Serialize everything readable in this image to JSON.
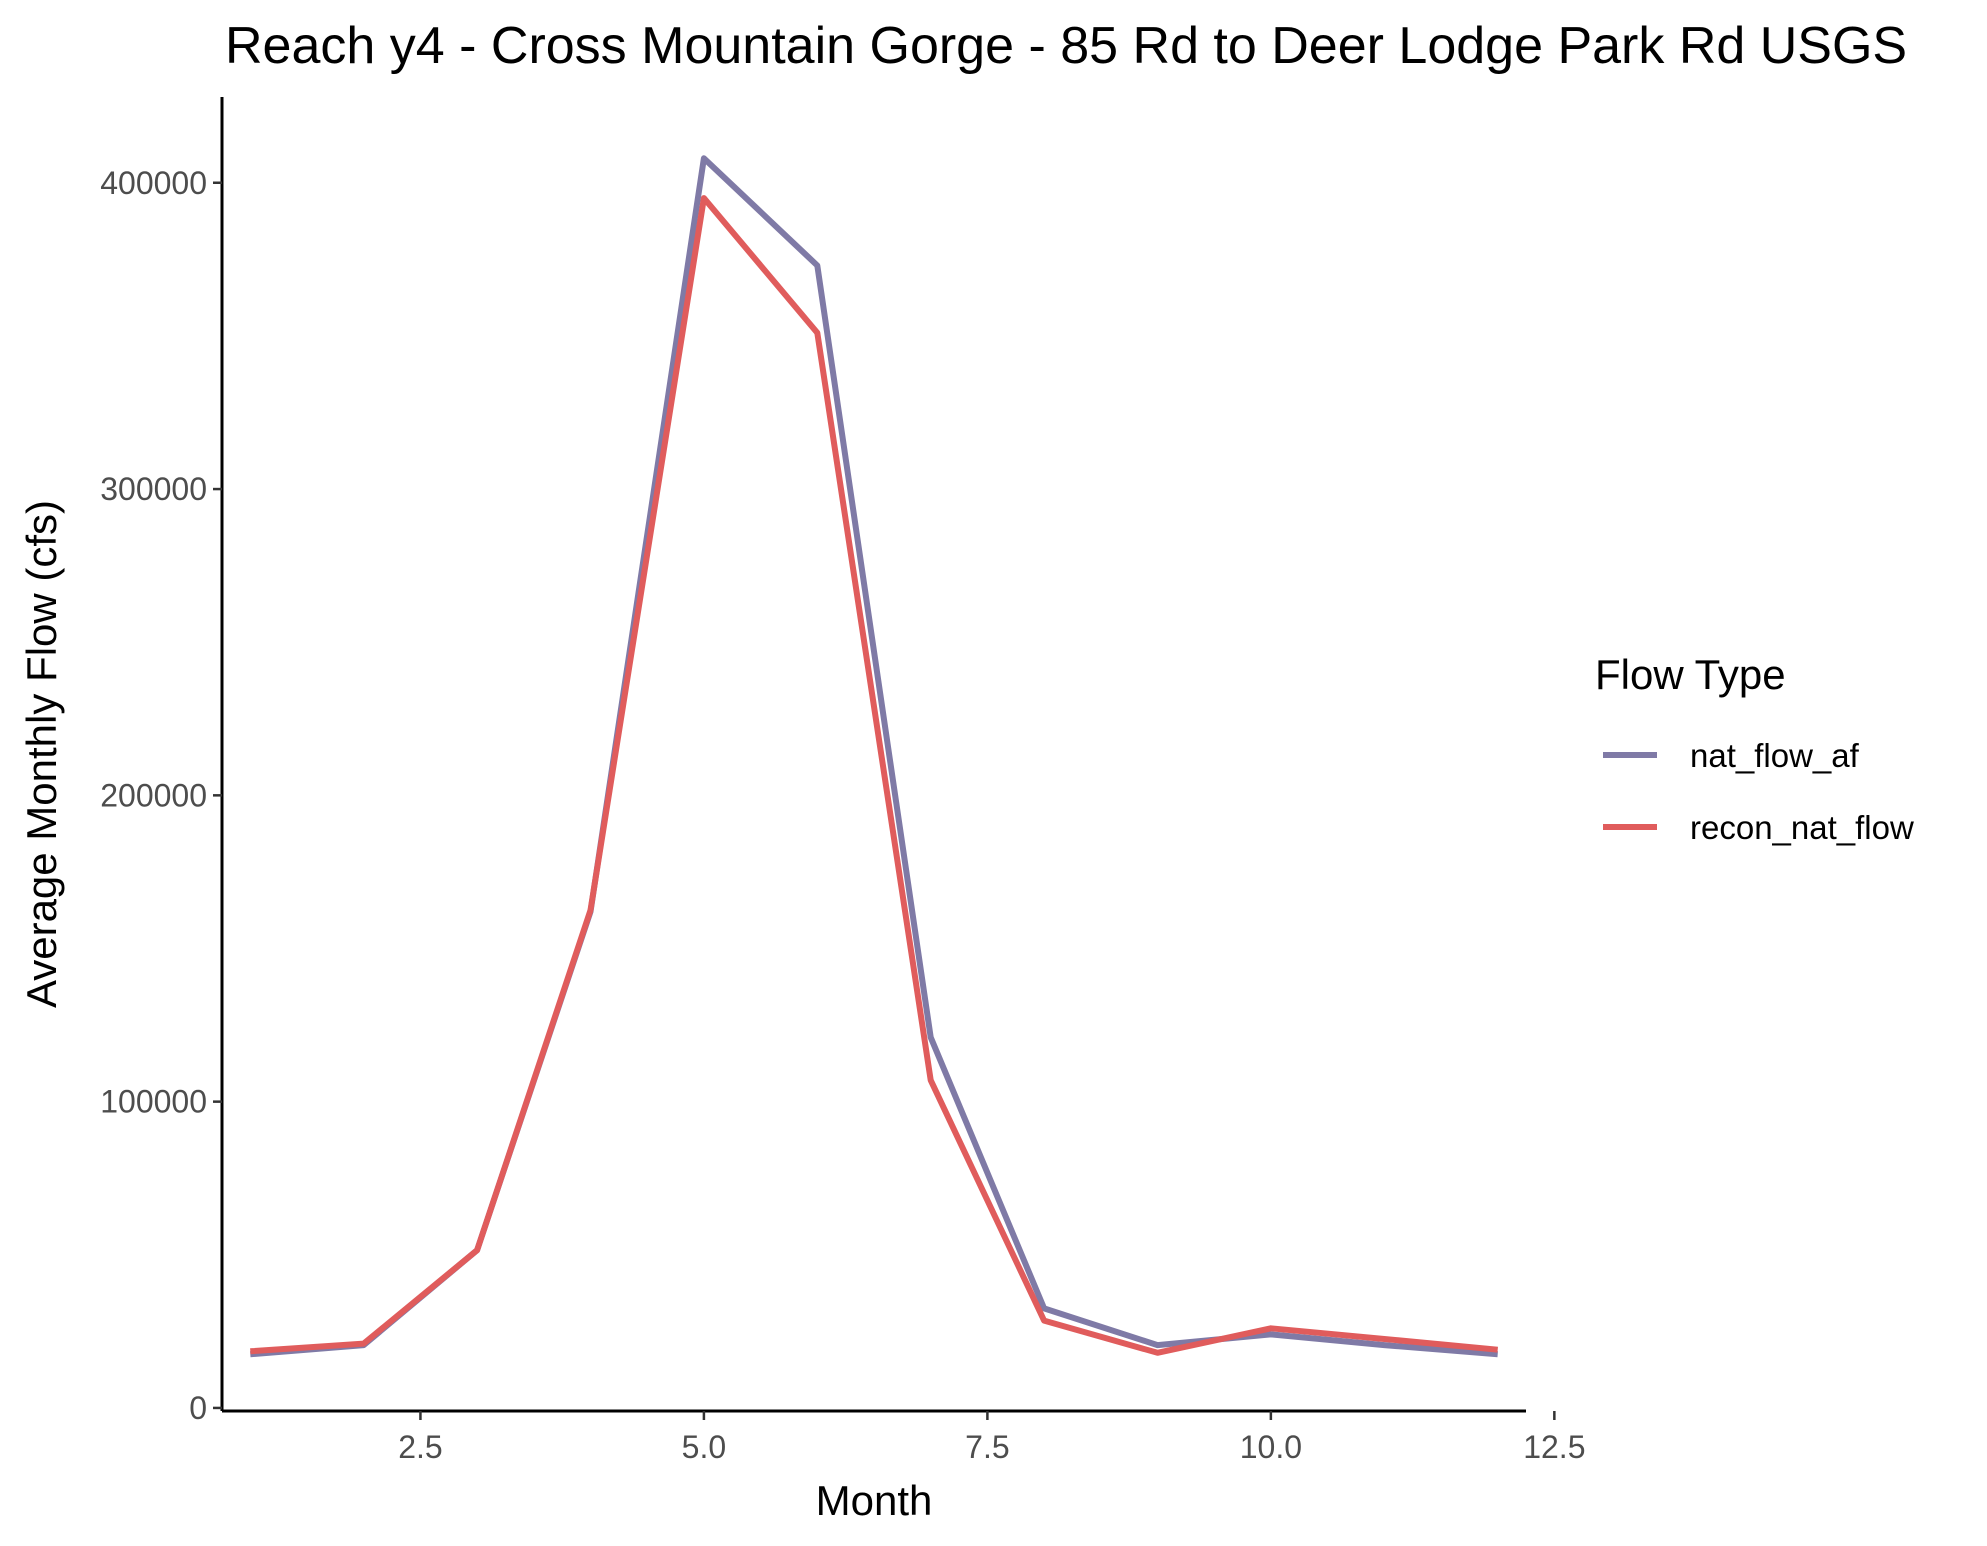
{
  "chart_data": {
    "type": "line",
    "title": "Reach y4 - Cross Mountain Gorge - 85 Rd to Deer Lodge Park Rd USGS",
    "xlabel": "Month",
    "ylabel": "Average Monthly Flow (cfs)",
    "xlim": [
      0.75,
      12.25
    ],
    "ylim": [
      -1000,
      428000
    ],
    "x_ticks": [
      2.5,
      5.0,
      7.5,
      10.0,
      12.5
    ],
    "x_tick_labels": [
      "2.5",
      "5.0",
      "7.5",
      "10.0",
      "12.5"
    ],
    "y_ticks": [
      0,
      100000,
      200000,
      300000,
      400000
    ],
    "y_tick_labels": [
      "0",
      "100000",
      "200000",
      "300000",
      "400000"
    ],
    "grid": false,
    "legend": {
      "title": "Flow Type",
      "placement": "right"
    },
    "x": [
      1,
      2,
      3,
      4,
      5,
      6,
      7,
      8,
      9,
      10,
      11,
      12
    ],
    "series": [
      {
        "name": "nat_flow_af",
        "color": "#7f7aa6",
        "values": [
          17500,
          20500,
          51500,
          162000,
          408000,
          373000,
          121000,
          32500,
          20500,
          24000,
          20500,
          17500
        ]
      },
      {
        "name": "recon_nat_flow",
        "color": "#e05c5c",
        "values": [
          18500,
          21000,
          51500,
          162500,
          395000,
          351000,
          107000,
          28500,
          18000,
          26000,
          22500,
          19000
        ]
      }
    ]
  }
}
